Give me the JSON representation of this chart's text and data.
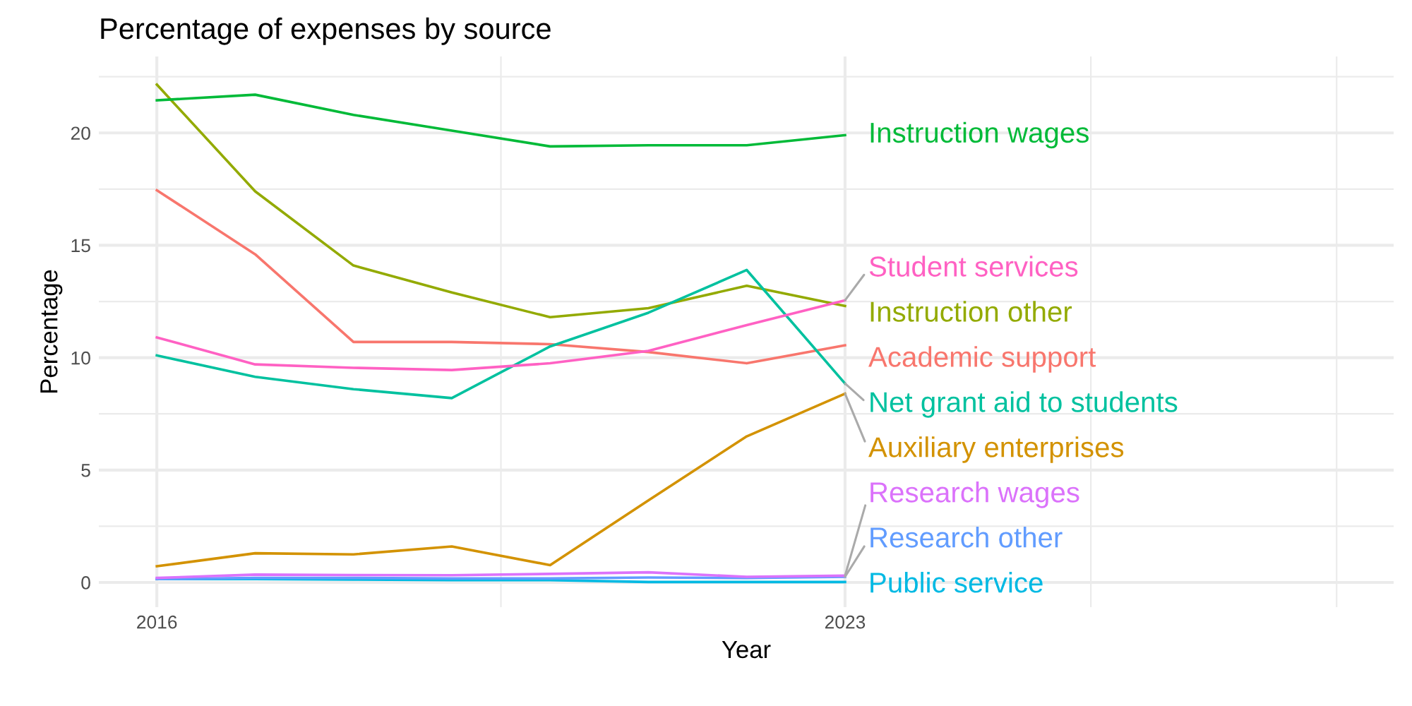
{
  "chart_data": {
    "type": "line",
    "title": "Percentage of expenses by source",
    "xlabel": "Year",
    "ylabel": "Percentage",
    "x": [
      2016,
      2017,
      2018,
      2019,
      2020,
      2021,
      2022,
      2023
    ],
    "xlim": [
      2015.41,
      2028.58
    ],
    "xticks": [
      2016,
      {
        "value": 2019.5,
        "label": null
      },
      2023,
      {
        "value": 2025.5,
        "label": null
      },
      {
        "value": 2028,
        "label": null
      }
    ],
    "ylim": [
      -1.1,
      23.4
    ],
    "yticks": [
      0,
      {
        "value": 2.5,
        "label": null
      },
      5,
      {
        "value": 7.5,
        "label": null
      },
      10,
      {
        "value": 12.5,
        "label": null
      },
      15,
      {
        "value": 17.5,
        "label": null
      },
      20,
      {
        "value": 22.5,
        "label": null
      }
    ],
    "grid": true,
    "legend": false,
    "marker": "none",
    "line_style": "solid",
    "series": [
      {
        "name": "Academic support",
        "color": "#f8766d",
        "values": [
          17.45,
          14.6,
          10.7,
          10.7,
          10.6,
          10.25,
          9.75,
          10.55
        ]
      },
      {
        "name": "Auxiliary enterprises",
        "color": "#d39200",
        "values": [
          0.72,
          1.3,
          1.25,
          1.6,
          0.77,
          3.65,
          6.5,
          8.4
        ]
      },
      {
        "name": "Instruction other",
        "color": "#93aa00",
        "values": [
          22.15,
          17.4,
          14.1,
          12.9,
          11.8,
          12.2,
          13.2,
          12.3
        ]
      },
      {
        "name": "Instruction wages",
        "color": "#00ba38",
        "values": [
          21.45,
          21.7,
          20.8,
          20.1,
          19.4,
          19.45,
          19.45,
          19.9
        ]
      },
      {
        "name": "Net grant aid to students",
        "color": "#00c19f",
        "values": [
          10.1,
          9.15,
          8.6,
          8.2,
          10.5,
          12.0,
          13.9,
          8.85
        ]
      },
      {
        "name": "Public service",
        "color": "#00b9e3",
        "values": [
          0.15,
          0.15,
          0.13,
          0.1,
          0.1,
          0.02,
          0.02,
          0.02
        ]
      },
      {
        "name": "Research other",
        "color": "#619cff",
        "values": [
          0.15,
          0.2,
          0.2,
          0.18,
          0.18,
          0.22,
          0.2,
          0.25
        ]
      },
      {
        "name": "Research wages",
        "color": "#db72fb",
        "values": [
          0.2,
          0.35,
          0.33,
          0.32,
          0.38,
          0.45,
          0.25,
          0.3
        ]
      },
      {
        "name": "Student services",
        "color": "#ff61c3",
        "values": [
          10.9,
          9.7,
          9.55,
          9.45,
          9.75,
          10.3,
          11.45,
          12.55
        ]
      }
    ]
  }
}
